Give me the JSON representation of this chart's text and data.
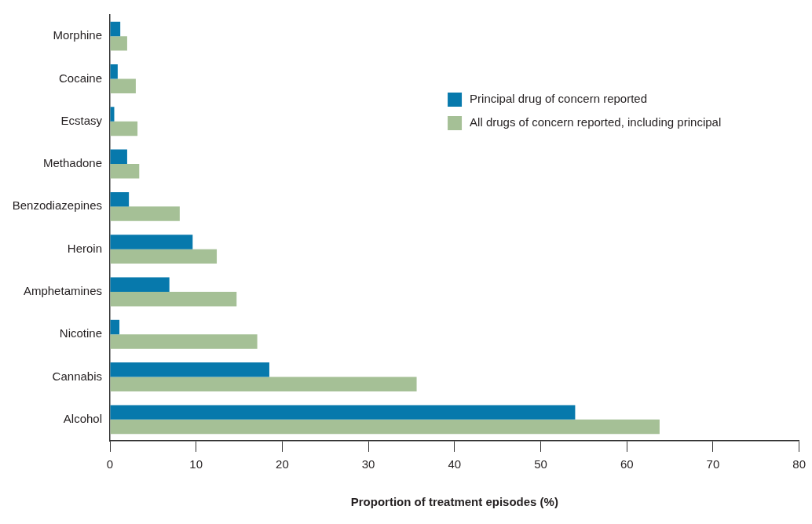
{
  "chart_data": {
    "type": "bar",
    "orientation": "horizontal",
    "categories": [
      "Morphine",
      "Cocaine",
      "Ecstasy",
      "Methadone",
      "Benzodiazepines",
      "Heroin",
      "Amphetamines",
      "Nicotine",
      "Cannabis",
      "Alcohol"
    ],
    "series": [
      {
        "name": "Principal drug of concern reported",
        "color": "#0779ac",
        "values": [
          1.2,
          0.9,
          0.5,
          2.0,
          2.2,
          9.6,
          6.9,
          1.1,
          18.5,
          54.0
        ]
      },
      {
        "name": "All drugs of concern reported, including principal",
        "color": "#a5c096",
        "values": [
          2.0,
          3.0,
          3.2,
          3.4,
          8.1,
          12.4,
          14.7,
          17.1,
          35.6,
          63.8
        ]
      }
    ],
    "xlabel": "Proportion of treatment episodes (%)",
    "xlim": [
      0,
      80
    ],
    "xticks": [
      0,
      10,
      20,
      30,
      40,
      50,
      60,
      70,
      80
    ],
    "grid": false,
    "legend": "top right"
  }
}
